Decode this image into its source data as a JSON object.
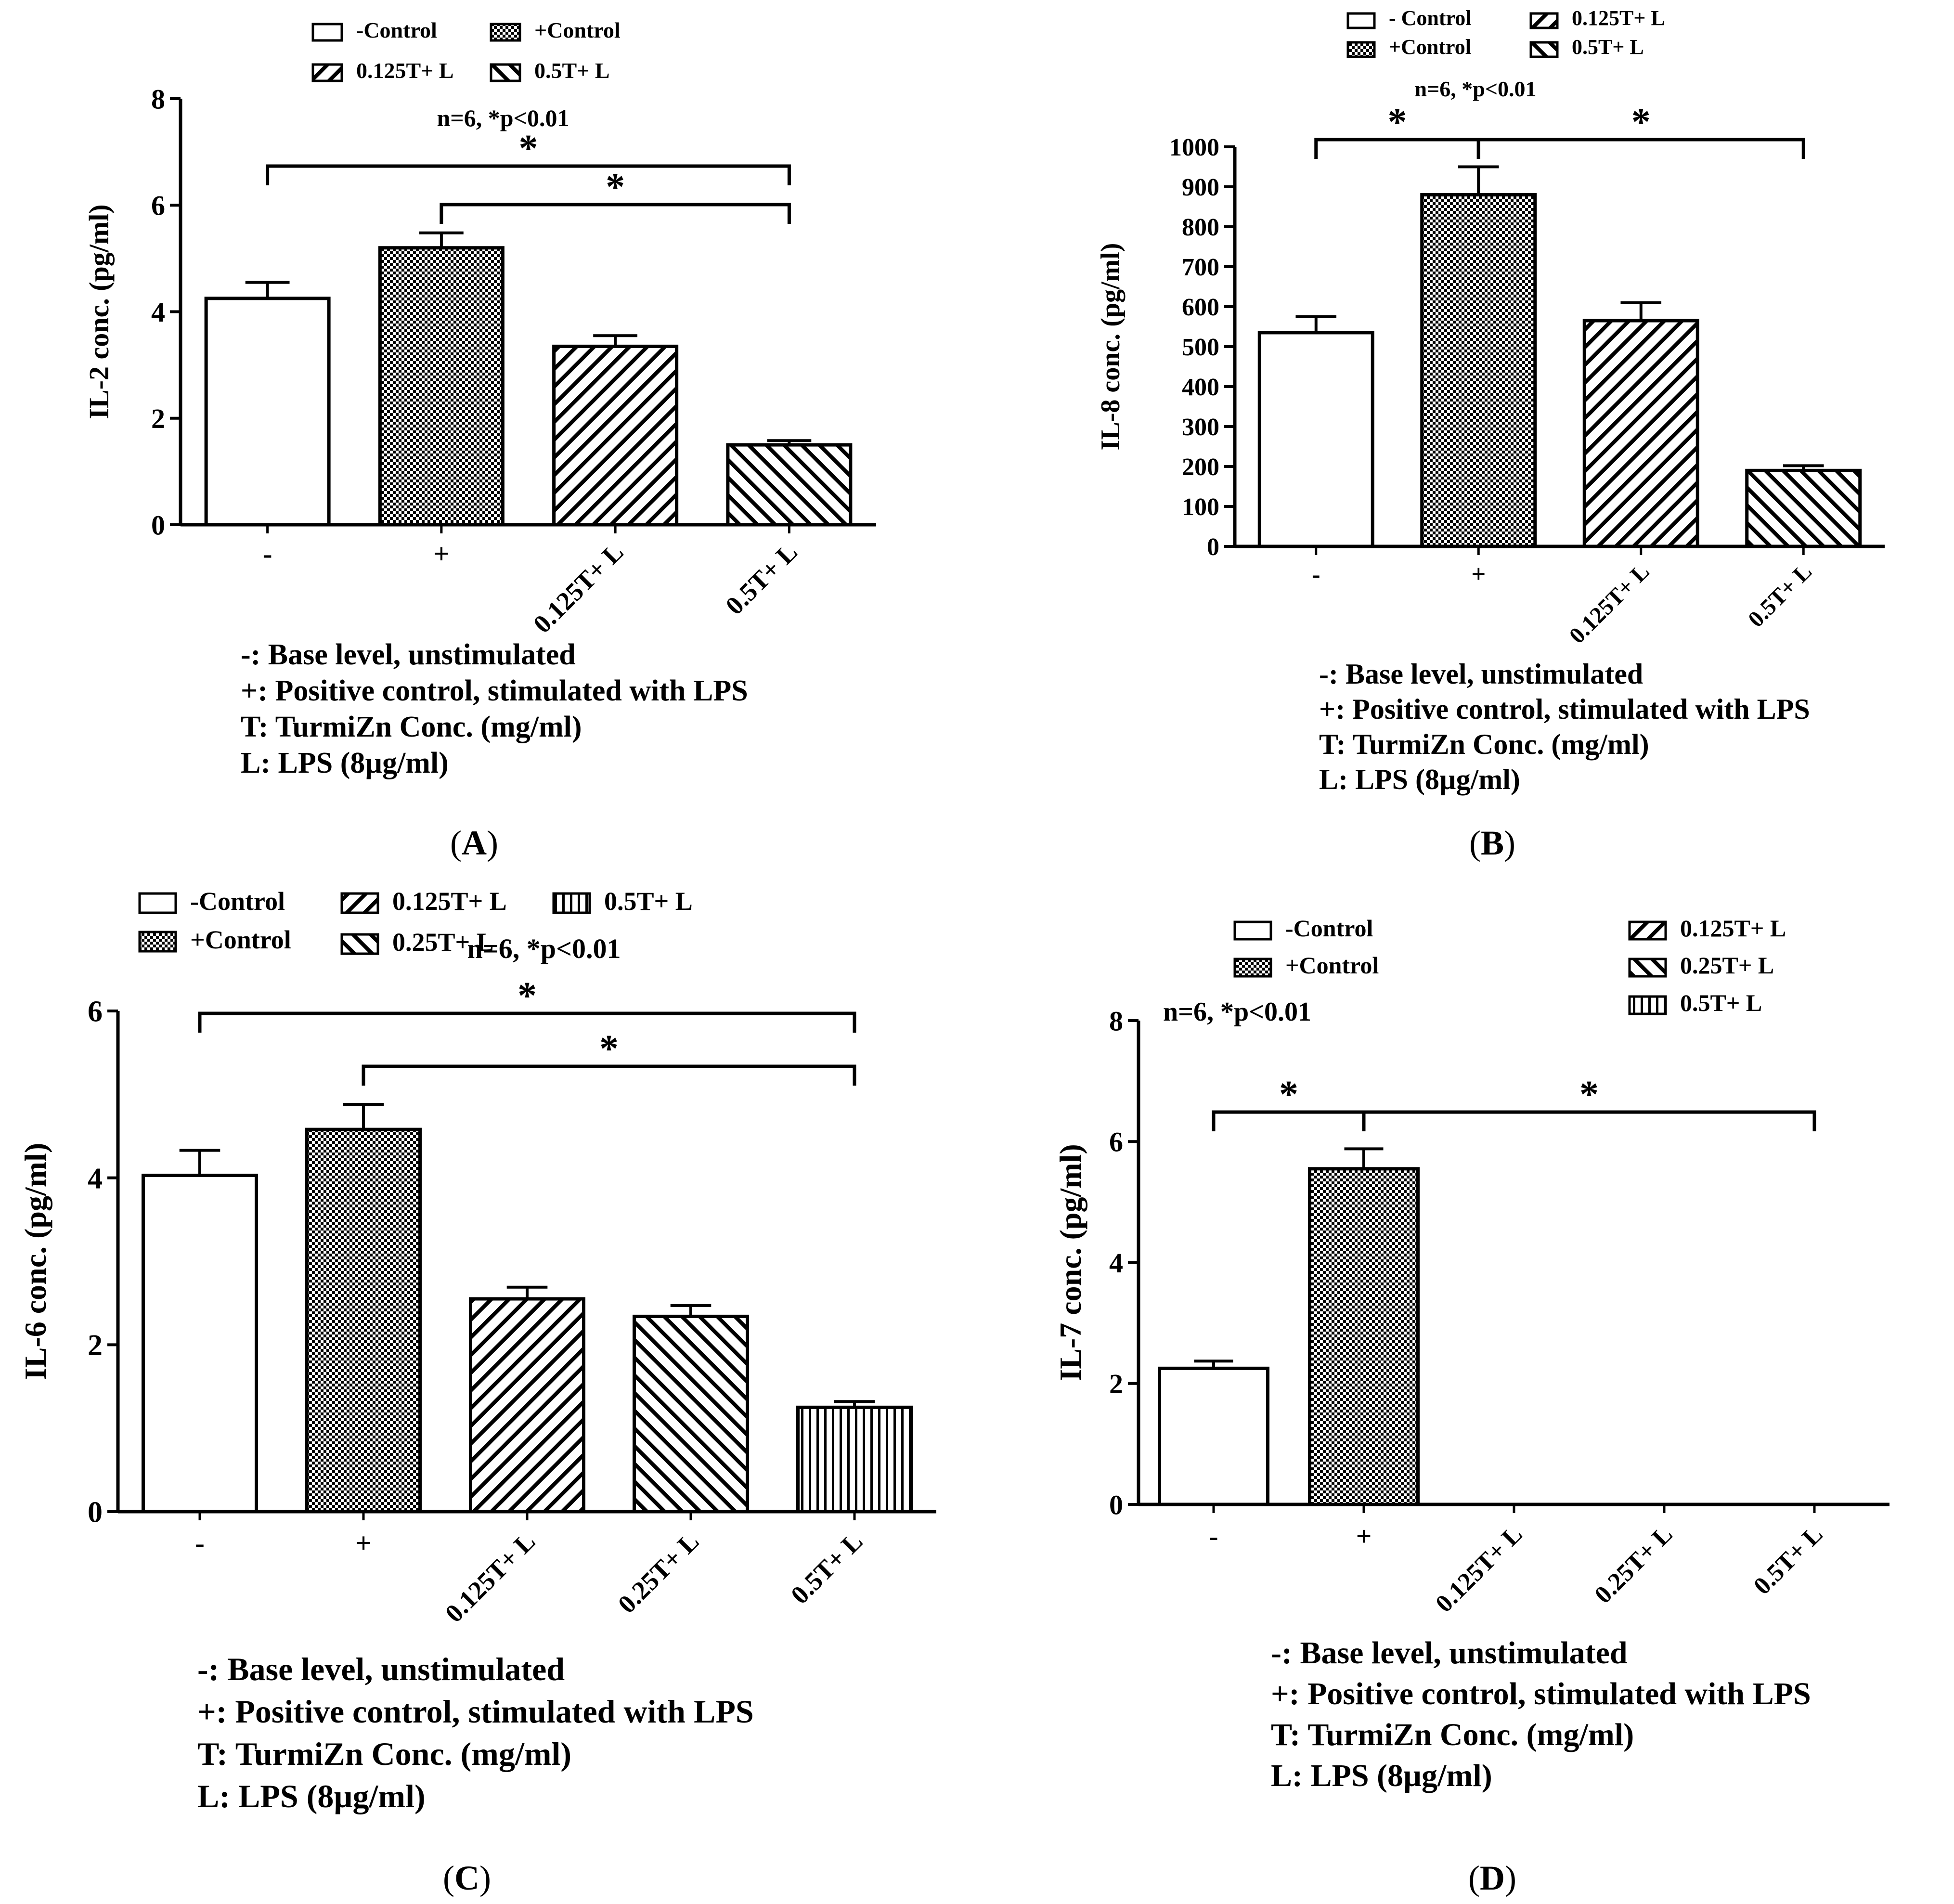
{
  "figure": {
    "colors": {
      "ink": "#000000",
      "background": "#ffffff"
    },
    "pattern_names": [
      "none",
      "checker",
      "diag-up",
      "diag-down",
      "vertical"
    ],
    "chart_data": [
      {
        "id": "A",
        "type": "bar",
        "panel_label": "A",
        "ylabel": "IL-2 conc. (pg/ml)",
        "ylim": [
          0,
          8
        ],
        "yticks": [
          "0",
          "2",
          "4",
          "6",
          "8"
        ],
        "ytick_values": [
          0,
          2,
          4,
          6,
          8
        ],
        "categories": [
          "-",
          "+",
          "0.125T+ L",
          "0.5T+ L"
        ],
        "values": [
          4.25,
          5.2,
          3.35,
          1.5
        ],
        "errors": [
          0.3,
          0.28,
          0.2,
          0.08
        ],
        "patterns": [
          "none",
          "checker",
          "diag-up",
          "diag-down"
        ],
        "stats_text": "n=6, *p<0.01",
        "legend": [
          {
            "label": "-Control",
            "pattern": "none"
          },
          {
            "label": "+Control",
            "pattern": "checker"
          },
          {
            "label": "0.125T+ L",
            "pattern": "diag-up"
          },
          {
            "label": "0.5T+ L",
            "pattern": "diag-down"
          }
        ],
        "significance": [
          {
            "from": 0,
            "to": 3,
            "label": "*"
          },
          {
            "from": 1,
            "to": 3,
            "label": "*"
          }
        ],
        "footnotes": [
          "-: Base level, unstimulated",
          "+: Positive control, stimulated with LPS",
          "T: TurmiZn Conc. (mg/ml)",
          "L: LPS (8µg/ml)"
        ]
      },
      {
        "id": "B",
        "type": "bar",
        "panel_label": "B",
        "ylabel": "IL-8 conc. (pg/ml)",
        "ylim": [
          0,
          1000
        ],
        "yticks": [
          "0",
          "100",
          "200",
          "300",
          "400",
          "500",
          "600",
          "700",
          "800",
          "900",
          "1000"
        ],
        "ytick_values": [
          0,
          100,
          200,
          300,
          400,
          500,
          600,
          700,
          800,
          900,
          1000
        ],
        "categories": [
          "-",
          "+",
          "0.125T+ L",
          "0.5T+ L"
        ],
        "values": [
          535,
          880,
          565,
          190
        ],
        "errors": [
          40,
          70,
          45,
          12
        ],
        "patterns": [
          "none",
          "checker",
          "diag-up",
          "diag-down"
        ],
        "stats_text": "n=6, *p<0.01",
        "legend": [
          {
            "label": "- Control",
            "pattern": "none"
          },
          {
            "label": "0.125T+ L",
            "pattern": "diag-up"
          },
          {
            "label": "+Control",
            "pattern": "checker"
          },
          {
            "label": "0.5T+ L",
            "pattern": "diag-down"
          }
        ],
        "significance": [
          {
            "from": 0,
            "to": 1,
            "label": "*"
          },
          {
            "from": 1,
            "to": 3,
            "label": "*"
          }
        ],
        "footnotes": [
          "-: Base level, unstimulated",
          "+: Positive control, stimulated with LPS",
          "T: TurmiZn Conc. (mg/ml)",
          "L: LPS (8µg/ml)"
        ]
      },
      {
        "id": "C",
        "type": "bar",
        "panel_label": "C",
        "ylabel": "IL-6 conc. (pg/ml)",
        "ylim": [
          0,
          6
        ],
        "yticks": [
          "0",
          "2",
          "4",
          "6"
        ],
        "ytick_values": [
          0,
          2,
          4,
          6
        ],
        "categories": [
          "-",
          "+",
          "0.125T+ L",
          "0.25T+ L",
          "0.5T+ L"
        ],
        "values": [
          4.03,
          4.58,
          2.55,
          2.34,
          1.25
        ],
        "errors": [
          0.3,
          0.3,
          0.14,
          0.13,
          0.07
        ],
        "patterns": [
          "none",
          "checker",
          "diag-up",
          "diag-down",
          "vertical"
        ],
        "stats_text": "n=6, *p<0.01",
        "legend": [
          {
            "label": "-Control",
            "pattern": "none"
          },
          {
            "label": "0.125T+ L",
            "pattern": "diag-up"
          },
          {
            "label": "0.5T+ L",
            "pattern": "vertical"
          },
          {
            "label": "+Control",
            "pattern": "checker"
          },
          {
            "label": "0.25T+ L",
            "pattern": "diag-down"
          }
        ],
        "significance": [
          {
            "from": 0,
            "to": 4,
            "label": "*"
          },
          {
            "from": 1,
            "to": 4,
            "label": "*"
          }
        ],
        "footnotes": [
          "-: Base level, unstimulated",
          "+: Positive control, stimulated with LPS",
          "T: TurmiZn Conc. (mg/ml)",
          "L: LPS (8µg/ml)"
        ]
      },
      {
        "id": "D",
        "type": "bar",
        "panel_label": "D",
        "ylabel": "IL-7 conc. (pg/ml)",
        "ylim": [
          0,
          8
        ],
        "yticks": [
          "0",
          "2",
          "4",
          "6",
          "8"
        ],
        "ytick_values": [
          0,
          2,
          4,
          6,
          8
        ],
        "categories": [
          "-",
          "+",
          "0.125T+ L",
          "0.25T+ L",
          "0.5T+ L"
        ],
        "values": [
          2.25,
          5.55,
          0,
          0,
          0
        ],
        "errors": [
          0.12,
          0.33,
          0,
          0,
          0
        ],
        "patterns": [
          "none",
          "checker",
          "diag-up",
          "diag-down",
          "vertical"
        ],
        "stats_text": "n=6, *p<0.01",
        "legend": [
          {
            "label": "-Control",
            "pattern": "none"
          },
          {
            "label": "+Control",
            "pattern": "checker"
          },
          {
            "label": "0.125T+ L",
            "pattern": "diag-up"
          },
          {
            "label": "0.25T+ L",
            "pattern": "diag-down"
          },
          {
            "label": "0.5T+ L",
            "pattern": "vertical"
          }
        ],
        "significance": [
          {
            "from": 0,
            "to": 1,
            "label": "*"
          },
          {
            "from": 1,
            "to": 4,
            "label": "*"
          }
        ],
        "footnotes": [
          "-: Base level, unstimulated",
          "+: Positive control, stimulated with LPS",
          "T: TurmiZn Conc. (mg/ml)",
          "L: LPS (8µg/ml)"
        ]
      }
    ]
  }
}
